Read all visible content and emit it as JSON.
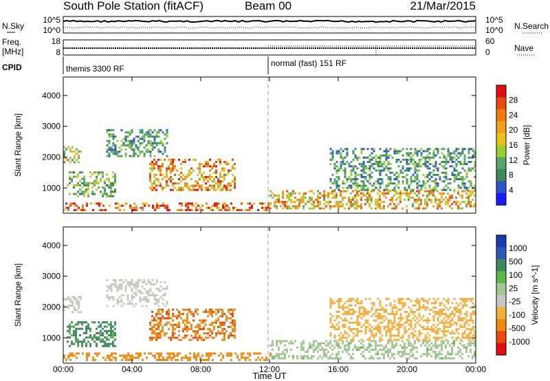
{
  "header": {
    "station": "South Pole Station (fitACF)",
    "beam": "Beam 00",
    "date": "21/Mar/2015"
  },
  "noise_panel": {
    "left_label": "N.Sky",
    "right_label": "N.Search",
    "ticks_left": [
      "10^5",
      "10^0"
    ],
    "ticks_right": [
      "10^5",
      "10^0"
    ]
  },
  "freq_panel": {
    "left_label_1": "Freq.",
    "left_label_2": "[MHz]",
    "right_label": "Nave",
    "ticks_left": [
      "18",
      "8"
    ],
    "ticks_right": [
      "60",
      "0"
    ]
  },
  "cpid_panel": {
    "label": "CPID",
    "segments": [
      {
        "label": "themis 3300 RF",
        "start_hour": 0,
        "end_hour": 12
      },
      {
        "label": "normal (fast) 151 RF",
        "start_hour": 12,
        "end_hour": 24
      }
    ]
  },
  "x_axis": {
    "label": "Time UT",
    "ticks": [
      "00:00",
      "04:00",
      "08:00",
      "12:00",
      "16:00",
      "20:00",
      "00:00"
    ],
    "range_hours": [
      0,
      24
    ]
  },
  "colors": {
    "power": [
      "#1a1aff",
      "#2a55c8",
      "#3f8a5a",
      "#55a66a",
      "#9acd32",
      "#e8c21a",
      "#f0a020",
      "#f07a10",
      "#e84a10",
      "#e01010"
    ],
    "velocity": [
      "#e01010",
      "#e84a10",
      "#f08a10",
      "#f0b040",
      "#c8c8c0",
      "#a0c890",
      "#5ab84a",
      "#3f8a5a",
      "#2a5ab8",
      "#1a3ab0"
    ]
  },
  "chart_data": [
    {
      "type": "heatmap",
      "title": "Power",
      "xlabel": "Time UT",
      "ylabel": "Slant Range [km]",
      "xlim": [
        0,
        24
      ],
      "ylim": [
        180,
        4600
      ],
      "yticks": [
        "1000",
        "2000",
        "3000",
        "4000"
      ],
      "colorbar": {
        "label": "Power [dB]",
        "range": [
          0,
          32
        ],
        "ticks": [
          "4",
          "8",
          "12",
          "16",
          "20",
          "24",
          "28"
        ]
      },
      "regions": [
        {
          "t0": 0.0,
          "t1": 12.0,
          "r0": 250,
          "r1": 500,
          "value": 26
        },
        {
          "t0": 5.0,
          "t1": 10.0,
          "r0": 900,
          "r1": 1900,
          "value": 22
        },
        {
          "t0": 0.2,
          "t1": 3.0,
          "r0": 700,
          "r1": 1500,
          "value": 12
        },
        {
          "t0": 0.0,
          "t1": 1.0,
          "r0": 1800,
          "r1": 2300,
          "value": 14
        },
        {
          "t0": 2.5,
          "t1": 6.0,
          "r0": 2000,
          "r1": 2900,
          "value": 10
        },
        {
          "t0": 12.0,
          "t1": 24.0,
          "r0": 300,
          "r1": 900,
          "value": 20
        },
        {
          "t0": 15.5,
          "t1": 24.0,
          "r0": 900,
          "r1": 2300,
          "value": 10
        }
      ]
    },
    {
      "type": "heatmap",
      "title": "Velocity",
      "xlabel": "Time UT",
      "ylabel": "Slant Range [km]",
      "xlim": [
        0,
        24
      ],
      "ylim": [
        180,
        4600
      ],
      "yticks": [
        "1000",
        "2000",
        "3000",
        "4000"
      ],
      "colorbar": {
        "label": "Velocity [m s^-1]",
        "ticks": [
          "1000",
          "500",
          "100",
          "25",
          "-25",
          "-100",
          "-500",
          "-1000"
        ]
      },
      "regions": [
        {
          "t0": 0.0,
          "t1": 12.0,
          "r0": 250,
          "r1": 500,
          "value": -300
        },
        {
          "t0": 5.0,
          "t1": 10.0,
          "r0": 900,
          "r1": 1900,
          "value": -450
        },
        {
          "t0": 0.2,
          "t1": 3.0,
          "r0": 700,
          "r1": 1500,
          "value": 600
        },
        {
          "t0": 0.0,
          "t1": 1.0,
          "r0": 1800,
          "r1": 2300,
          "value": 0
        },
        {
          "t0": 2.5,
          "t1": 6.0,
          "r0": 2000,
          "r1": 2900,
          "value": 0
        },
        {
          "t0": 12.0,
          "t1": 24.0,
          "r0": 300,
          "r1": 900,
          "value": 80
        },
        {
          "t0": 15.5,
          "t1": 24.0,
          "r0": 900,
          "r1": 2300,
          "value": -50
        }
      ]
    }
  ]
}
